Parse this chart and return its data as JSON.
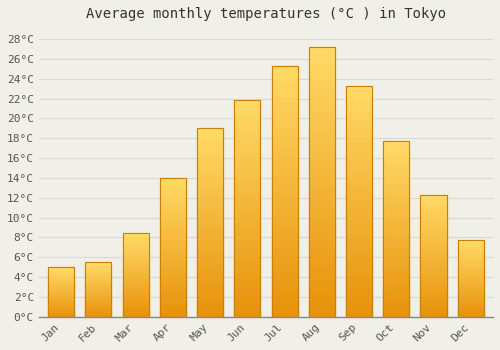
{
  "title": "Average monthly temperatures (°C ) in Tokyo",
  "months": [
    "Jan",
    "Feb",
    "Mar",
    "Apr",
    "May",
    "Jun",
    "Jul",
    "Aug",
    "Sep",
    "Oct",
    "Nov",
    "Dec"
  ],
  "temperatures": [
    5.0,
    5.5,
    8.4,
    14.0,
    19.0,
    21.9,
    25.3,
    27.2,
    23.3,
    17.7,
    12.3,
    7.7
  ],
  "bar_color_bottom": "#E8920A",
  "bar_color_top": "#FFD966",
  "bar_edge_color": "#C8800A",
  "background_color": "#f0f0e8",
  "grid_color": "#d8d8d8",
  "ytick_labels": [
    "0°C",
    "2°C",
    "4°C",
    "6°C",
    "8°C",
    "10°C",
    "12°C",
    "14°C",
    "16°C",
    "18°C",
    "20°C",
    "22°C",
    "24°C",
    "26°C",
    "28°C"
  ],
  "ytick_values": [
    0,
    2,
    4,
    6,
    8,
    10,
    12,
    14,
    16,
    18,
    20,
    22,
    24,
    26,
    28
  ],
  "ylim": [
    0,
    29
  ],
  "title_fontsize": 10,
  "tick_fontsize": 8,
  "font_family": "monospace",
  "bar_width": 0.7,
  "figsize": [
    5.0,
    3.5
  ],
  "dpi": 100
}
